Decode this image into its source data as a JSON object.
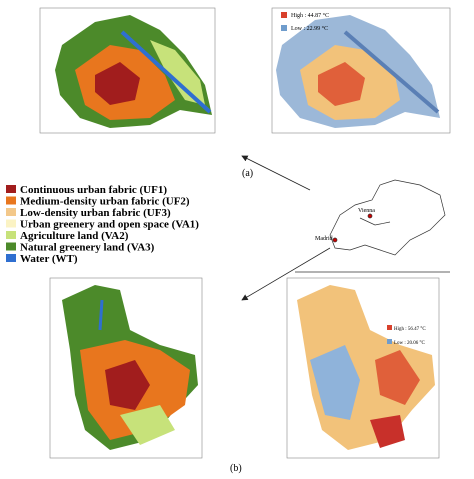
{
  "legend": {
    "items": [
      {
        "label": "Continuous urban fabric (UF1)",
        "color": "#a11d1d"
      },
      {
        "label": "Medium-density urban fabric (UF2)",
        "color": "#e8761e"
      },
      {
        "label": "Low-density urban fabric (UF3)",
        "color": "#f3c88a"
      },
      {
        "label": "Urban greenery and open space (VA1)",
        "color": "#fbf3c4"
      },
      {
        "label": "Agriculture land (VA2)",
        "color": "#c7e27a"
      },
      {
        "label": "Natural greenery land (VA3)",
        "color": "#4c8a2a"
      },
      {
        "label": "Water (WT)",
        "color": "#2f6fd0"
      }
    ]
  },
  "panel_a": {
    "label": "(a)",
    "high": "High : 44.87 °C",
    "low": "Low : 22.99 °C"
  },
  "panel_b": {
    "label": "(b)",
    "high": "High : 56.47 °C",
    "low": "Low : 20.06 °C"
  },
  "inset": {
    "city_1": "Vienna",
    "city_2": "Madrid"
  }
}
